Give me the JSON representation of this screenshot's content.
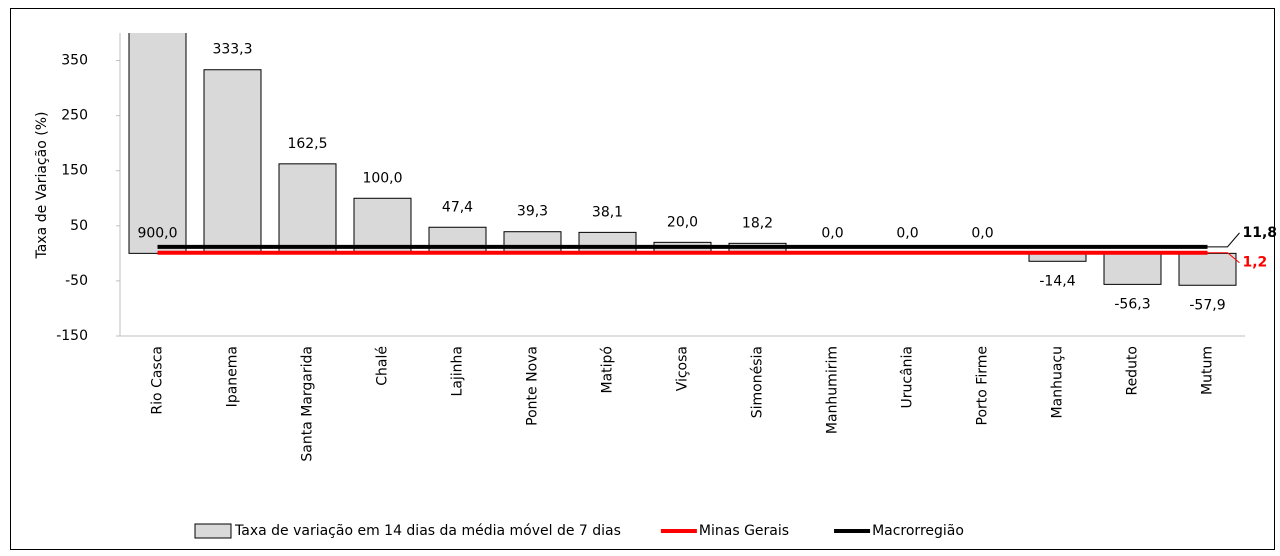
{
  "chart_data": {
    "type": "bar",
    "y_label": "Taxa de Variação (%)",
    "categories": [
      "Rio Casca",
      "Ipanema",
      "Santa Margarida",
      "Chalé",
      "Lajinha",
      "Ponte Nova",
      "Matipó",
      "Viçosa",
      "Simonésia",
      "Manhumirim",
      "Urucânia",
      "Porto Firme",
      "Manhuaçu",
      "Reduto",
      "Mutum"
    ],
    "series": [
      {
        "name": "Taxa de variação em 14 dias da média móvel de 7 dias",
        "color": "#d9d9d9",
        "values": [
          900,
          333.3,
          162.5,
          100,
          47.4,
          39.3,
          38.1,
          20,
          18.2,
          0,
          0,
          0,
          -14.4,
          -56.3,
          -57.9
        ],
        "value_labels": [
          "900,0",
          "333,3",
          "162,5",
          "100,0",
          "47,4",
          "39,3",
          "38,1",
          "20,0",
          "18,2",
          "0,0",
          "0,0",
          "0,0",
          "-14,4",
          "-56,3",
          "-57,9"
        ]
      }
    ],
    "lines": [
      {
        "name": "Minas Gerais",
        "color": "#ff0000",
        "value": 1.2,
        "value_label": "1,2"
      },
      {
        "name": "Macrorregião",
        "color": "#000000",
        "value": 11.8,
        "value_label": "11,8"
      }
    ],
    "ylim": [
      -150,
      400
    ],
    "yticks": [
      -150,
      -50,
      50,
      150,
      250,
      350
    ]
  }
}
